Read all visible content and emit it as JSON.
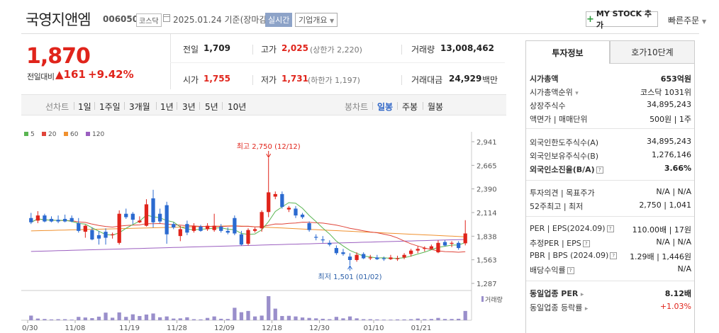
{
  "header": {
    "stock_name": "국영지앤엠",
    "stock_code": "006050",
    "market": "코스닥",
    "date_text": "2025.01.24  기준(장마감)",
    "realtime_label": "실시간",
    "overview_label": "기업개요",
    "mystock_label": "MY STOCK 추가",
    "quick_order_label": "빠른주문"
  },
  "price": {
    "current": "1,870",
    "prev_label": "전일대비",
    "change_abs": "▲161",
    "change_pct": "+9.42%"
  },
  "summary": {
    "prev_close_label": "전일",
    "prev_close": "1,709",
    "high_label": "고가",
    "high": "2,025",
    "upper_limit": "(상한가 2,220)",
    "volume_label": "거래량",
    "volume": "13,008,462",
    "open_label": "시가",
    "open": "1,755",
    "low_label": "저가",
    "low": "1,731",
    "lower_limit": "(하한가 1,197)",
    "amount_label": "거래대금",
    "amount": "24,929",
    "amount_unit": "백만"
  },
  "period_bar": {
    "line_chart_label": "선차트",
    "periods": [
      "1일",
      "1주일",
      "3개월",
      "1년",
      "3년",
      "5년",
      "10년"
    ],
    "candle_label": "봉차트",
    "candle_periods": [
      "일봉",
      "주봉",
      "월봉"
    ],
    "active_candle": "일봉"
  },
  "colors": {
    "up": "#e0241b",
    "down": "#2b6ad0",
    "ma5": "#5ab552",
    "ma20": "#e0453a",
    "ma60": "#f0912f",
    "ma120": "#9b5fc0",
    "volume": "#9a8fcb"
  },
  "chart_data": {
    "type": "candlestick",
    "legend": [
      "5",
      "20",
      "60",
      "120"
    ],
    "y_ticks": [
      "2,941",
      "2,665",
      "2,390",
      "2,114",
      "1,838",
      "1,563",
      "1,287"
    ],
    "ylim": [
      1287,
      2941
    ],
    "x_ticks": [
      "10/30",
      "11/08",
      "11/19",
      "11/28",
      "12/09",
      "12/18",
      "12/30",
      "01/10",
      "01/21"
    ],
    "high_annotation": "최고 2,750 (12/12)",
    "low_annotation": "최저 1,501 (01/02)",
    "volume_label": "거래량",
    "candles": [
      [
        2050,
        2000,
        2110,
        1980
      ],
      [
        2020,
        2080,
        2130,
        1990
      ],
      [
        2080,
        2010,
        2100,
        2000
      ],
      [
        2040,
        2010,
        2070,
        2000
      ],
      [
        2030,
        2010,
        2080,
        1990
      ],
      [
        2040,
        2010,
        2090,
        2000
      ],
      [
        2050,
        2010,
        2080,
        2000
      ],
      [
        1990,
        1900,
        2050,
        1880
      ],
      [
        1890,
        1960,
        1970,
        1820
      ],
      [
        1910,
        1800,
        1940,
        1790
      ],
      [
        1850,
        1810,
        1900,
        1740
      ],
      [
        1890,
        1820,
        1930,
        1740
      ],
      [
        1850,
        1860,
        1880,
        1810
      ],
      [
        1760,
        2100,
        2140,
        1740
      ],
      [
        2100,
        2060,
        2160,
        2040
      ],
      [
        2100,
        2030,
        2120,
        1980
      ],
      [
        2000,
        2020,
        2070,
        1990
      ],
      [
        1960,
        2210,
        2270,
        1950
      ],
      [
        2280,
        2000,
        2380,
        1940
      ],
      [
        2100,
        2010,
        2160,
        1990
      ],
      [
        2200,
        1860,
        2240,
        1750
      ],
      [
        1980,
        1940,
        2000,
        1920
      ],
      [
        1840,
        1920,
        1960,
        1780
      ],
      [
        1980,
        1880,
        2020,
        1850
      ],
      [
        1900,
        1960,
        1990,
        1880
      ],
      [
        1950,
        1900,
        1970,
        1890
      ],
      [
        1920,
        1960,
        1990,
        1900
      ],
      [
        1910,
        1960,
        2100,
        1890
      ],
      [
        1950,
        1900,
        1980,
        1880
      ],
      [
        1900,
        1880,
        1940,
        1860
      ],
      [
        2050,
        1870,
        2080,
        1850
      ],
      [
        1860,
        1740,
        1900,
        1730
      ],
      [
        1750,
        1910,
        1930,
        1730
      ],
      [
        1900,
        1920,
        1940,
        1880
      ],
      [
        1930,
        2120,
        2140,
        1890
      ],
      [
        2120,
        2350,
        2750,
        2060
      ],
      [
        2300,
        2330,
        2360,
        2270
      ],
      [
        2330,
        2180,
        2360,
        2160
      ],
      [
        2150,
        2170,
        2190,
        2120
      ],
      [
        2160,
        2080,
        2190,
        2050
      ],
      [
        2090,
        2060,
        2110,
        2040
      ],
      [
        1990,
        1910,
        2010,
        1890
      ],
      [
        1830,
        1820,
        1860,
        1790
      ],
      [
        1800,
        1790,
        1840,
        1760
      ],
      [
        1760,
        1740,
        1790,
        1720
      ],
      [
        1700,
        1640,
        1730,
        1620
      ],
      [
        1650,
        1630,
        1690,
        1610
      ],
      [
        1600,
        1560,
        1640,
        1501
      ],
      [
        1560,
        1620,
        1650,
        1540
      ],
      [
        1630,
        1580,
        1650,
        1570
      ],
      [
        1580,
        1590,
        1620,
        1560
      ],
      [
        1590,
        1570,
        1620,
        1560
      ],
      [
        1580,
        1570,
        1600,
        1550
      ],
      [
        1570,
        1590,
        1620,
        1560
      ],
      [
        1570,
        1580,
        1610,
        1550
      ],
      [
        1590,
        1620,
        1640,
        1570
      ],
      [
        1630,
        1670,
        1690,
        1600
      ],
      [
        1670,
        1690,
        1720,
        1640
      ],
      [
        1690,
        1700,
        1720,
        1660
      ],
      [
        1690,
        1720,
        1740,
        1680
      ],
      [
        1650,
        1760,
        1790,
        1640
      ],
      [
        1770,
        1730,
        1790,
        1720
      ],
      [
        1750,
        1760,
        1780,
        1710
      ],
      [
        1760,
        1700,
        1780,
        1680
      ],
      [
        1755,
        1870,
        2025,
        1731
      ]
    ],
    "volumes": [
      2.2,
      0.8,
      0.6,
      0.4,
      0.5,
      0.5,
      0.3,
      1.6,
      1.3,
      1.0,
      1.7,
      3.6,
      1.2,
      3.7,
      1.6,
      2.8,
      2.0,
      2.7,
      3.2,
      1.4,
      1.8,
      0.8,
      0.9,
      1.4,
      0.5,
      0.4,
      1.1,
      1.8,
      0.7,
      0.6,
      5.9,
      3.8,
      4.4,
      1.8,
      2.2,
      11.4,
      5.5,
      2.0,
      2.1,
      1.8,
      1.3,
      1.1,
      0.9,
      0.7,
      0.5,
      1.6,
      0.9,
      1.8,
      0.9,
      0.5,
      0.5,
      0.4,
      0.3,
      0.3,
      0.4,
      0.4,
      0.5,
      0.8,
      0.5,
      0.6,
      1.1,
      0.6,
      0.6,
      0.7,
      4.4
    ]
  },
  "investment_info": {
    "tab_active": "투자정보",
    "tab_other": "호가10단계",
    "rows": [
      {
        "label": "시가총액",
        "value": "653억원",
        "bold": true
      },
      {
        "label": "시가총액순위",
        "value": "코스닥 1031위"
      },
      {
        "label": "상장주식수",
        "value": "34,895,243"
      },
      {
        "label": "액면가 | 매매단위",
        "value": "500원 | 1주"
      },
      {
        "label": "외국인한도주식수(A)",
        "value": "34,895,243"
      },
      {
        "label": "외국인보유주식수(B)",
        "value": "1,276,146"
      },
      {
        "label": "외국인소진율(B/A)",
        "value": "3.66%",
        "bold": true
      },
      {
        "label": "투자의견 | 목표주가",
        "value": "N/A | N/A"
      },
      {
        "label": "52주최고 | 최저",
        "value": "2,750 | 1,041"
      },
      {
        "label": "PER | EPS(2024.09)",
        "value": "110.00배 | 17원"
      },
      {
        "label": "추정PER | EPS",
        "value": "N/A | N/A"
      },
      {
        "label": "PBR | BPS (2024.09)",
        "value": "1.29배 | 1,446원"
      },
      {
        "label": "배당수익률",
        "value": "N/A"
      },
      {
        "label": "동일업종 PER",
        "value": "8.12배",
        "bold": true
      },
      {
        "label": "동일업종 등락률",
        "value": "+1.03%",
        "red": true
      }
    ]
  }
}
